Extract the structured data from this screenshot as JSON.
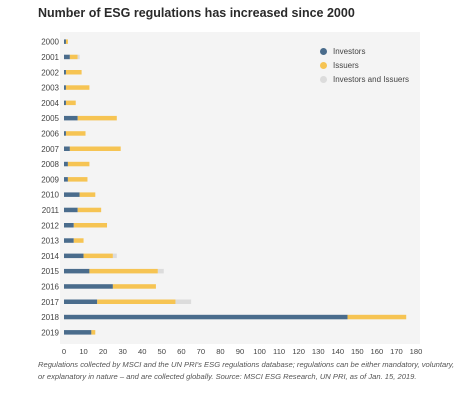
{
  "header": {
    "title": "Number of ESG regulations has increased since 2000"
  },
  "footer": {
    "caption": "Regulations collected by MSCI and the UN PRI's ESG regulations database; regulations can be either mandatory, voluntary, or explanatory in nature – and are collected globally. Source: MSCI ESG Research, UN PRI, as of Jan. 15, 2019."
  },
  "colors": {
    "investors": "#4a6c8c",
    "issuers": "#f6c453",
    "investors_and_issuers": "#dcdcdc",
    "plot_bg": "#f4f4f4"
  },
  "chart_data": {
    "type": "bar",
    "orientation": "horizontal",
    "stacked": true,
    "title": "Number of ESG regulations has increased since 2000",
    "xlabel": "",
    "ylabel": "",
    "xlim": [
      0,
      180
    ],
    "x_ticks": [
      0,
      10,
      20,
      30,
      40,
      50,
      60,
      70,
      80,
      90,
      100,
      110,
      120,
      130,
      140,
      150,
      160,
      170,
      180
    ],
    "grid": false,
    "legend_position": "top-right",
    "categories": [
      "2000",
      "2001",
      "2002",
      "2003",
      "2004",
      "2005",
      "2006",
      "2007",
      "2008",
      "2009",
      "2010",
      "2011",
      "2012",
      "2013",
      "2014",
      "2015",
      "2016",
      "2017",
      "2018",
      "2019"
    ],
    "series": [
      {
        "name": "Investors",
        "values": [
          1,
          3,
          1,
          1,
          1,
          7,
          1,
          3,
          2,
          2,
          8,
          7,
          5,
          5,
          10,
          13,
          25,
          17,
          145,
          14
        ]
      },
      {
        "name": "Issuers",
        "values": [
          1,
          4,
          8,
          12,
          5,
          20,
          10,
          26,
          11,
          10,
          8,
          12,
          17,
          5,
          15,
          35,
          22,
          40,
          30,
          2
        ]
      },
      {
        "name": "Investors and Issuers",
        "values": [
          0,
          1,
          0,
          0,
          0,
          0,
          0,
          0,
          0,
          0,
          0,
          0,
          0,
          0,
          2,
          3,
          0,
          8,
          0,
          0
        ]
      }
    ]
  }
}
